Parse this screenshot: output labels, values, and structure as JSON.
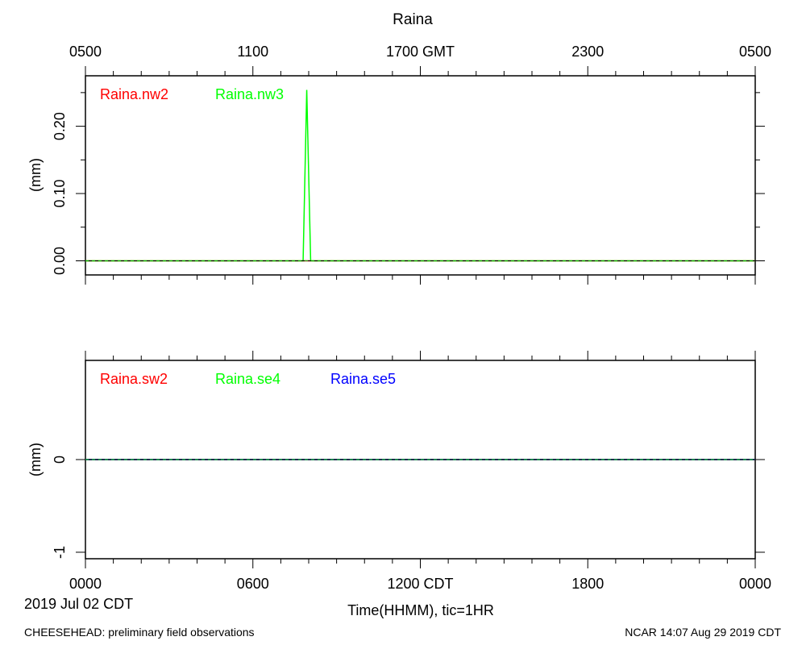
{
  "title": "Raina",
  "top_axis": {
    "ticks": [
      {
        "hour": 0,
        "label": "0500"
      },
      {
        "hour": 6,
        "label": "1100"
      },
      {
        "hour": 12,
        "label": "1700 GMT"
      },
      {
        "hour": 18,
        "label": "2300"
      },
      {
        "hour": 24,
        "label": "0500"
      }
    ]
  },
  "bottom_axis": {
    "ticks": [
      {
        "hour": 0,
        "label": "0000"
      },
      {
        "hour": 6,
        "label": "0600"
      },
      {
        "hour": 12,
        "label": "1200 CDT"
      },
      {
        "hour": 18,
        "label": "1800"
      },
      {
        "hour": 24,
        "label": "0000"
      }
    ],
    "date_label": "2019 Jul 02 CDT",
    "xlabel": "Time(HHMM), tic=1HR"
  },
  "footer": {
    "left": "CHEESEHEAD: preliminary field observations",
    "right": "NCAR 14:07 Aug 29 2019 CDT"
  },
  "chart_data": [
    {
      "type": "line",
      "ylabel": "(mm)",
      "xlim": [
        0,
        24
      ],
      "ylim": [
        -0.021,
        0.275
      ],
      "yticks": [
        {
          "value": 0.0,
          "label": "0.00"
        },
        {
          "value": 0.1,
          "label": "0.10"
        },
        {
          "value": 0.2,
          "label": "0.20"
        }
      ],
      "zero_line": true,
      "series": [
        {
          "name": "Raina.nw2",
          "color": "#ff0000",
          "x": [
            0,
            24
          ],
          "y": [
            0,
            0
          ]
        },
        {
          "name": "Raina.nw3",
          "color": "#00ff00",
          "x": [
            0,
            7.8,
            7.93,
            8.07,
            24
          ],
          "y": [
            0,
            0,
            0.254,
            0,
            0
          ]
        }
      ]
    },
    {
      "type": "line",
      "ylabel": "(mm)",
      "xlim": [
        0,
        24
      ],
      "ylim": [
        -1.07,
        1.07
      ],
      "yticks": [
        {
          "value": -1,
          "label": "-1"
        },
        {
          "value": 0,
          "label": "0"
        }
      ],
      "zero_line": true,
      "series": [
        {
          "name": "Raina.sw2",
          "color": "#ff0000",
          "x": [
            0,
            24
          ],
          "y": [
            0,
            0
          ]
        },
        {
          "name": "Raina.se4",
          "color": "#00ff00",
          "x": [
            0,
            24
          ],
          "y": [
            0,
            0
          ]
        },
        {
          "name": "Raina.se5",
          "color": "#0000ff",
          "x": [
            0,
            24
          ],
          "y": [
            0,
            0
          ]
        }
      ]
    }
  ]
}
